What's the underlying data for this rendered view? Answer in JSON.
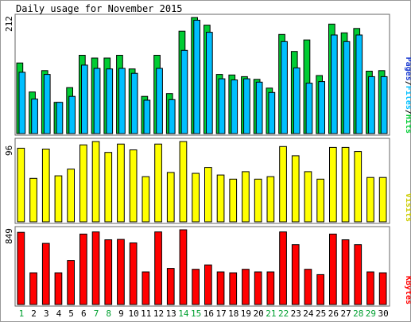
{
  "chart_data": {
    "type": "bar",
    "title": "Daily usage for November 2015",
    "categories": [
      "1",
      "2",
      "3",
      "4",
      "5",
      "6",
      "7",
      "8",
      "9",
      "10",
      "11",
      "12",
      "13",
      "14",
      "15",
      "16",
      "17",
      "18",
      "19",
      "20",
      "21",
      "22",
      "23",
      "24",
      "25",
      "26",
      "27",
      "28",
      "29",
      "30"
    ],
    "weekend_days": [
      "1",
      "7",
      "8",
      "14",
      "15",
      "21",
      "22",
      "28",
      "29"
    ],
    "panels": [
      {
        "id": "hits-files-pages",
        "ymax_label": "212",
        "ylim": [
          0,
          212
        ],
        "legend": [
          "Pages",
          "Files",
          "Hits"
        ],
        "series": [
          {
            "name": "Hits",
            "color": "#00cc33",
            "values": [
              129,
              76,
              115,
              57,
              84,
              143,
              138,
              138,
              143,
              118,
              68,
              143,
              73,
              187,
              212,
              198,
              108,
              107,
              104,
              99,
              83,
              181,
              150,
              171,
              106,
              200,
              184,
              192,
              114,
              115
            ]
          },
          {
            "name": "Files",
            "color": "#00bfff",
            "values": [
              112,
              63,
              108,
              57,
              68,
              125,
              119,
              118,
              119,
              110,
              61,
              119,
              62,
              152,
              207,
              185,
              100,
              98,
              100,
              94,
              75,
              168,
              120,
              92,
              95,
              180,
              168,
              180,
              104,
              104
            ]
          },
          {
            "name": "Pages",
            "color": "#1a3bd0",
            "values": [
              0,
              0,
              0,
              0,
              0,
              0,
              0,
              0,
              0,
              0,
              0,
              0,
              0,
              0,
              0,
              0,
              0,
              0,
              0,
              0,
              0,
              0,
              0,
              0,
              0,
              0,
              0,
              0,
              0,
              0
            ]
          }
        ]
      },
      {
        "id": "visits",
        "ymax_label": "96",
        "ylim": [
          0,
          96
        ],
        "legend": [
          "Visits"
        ],
        "series": [
          {
            "name": "Visits",
            "color": "#ffff00",
            "values": [
              88,
              52,
              87,
              55,
              63,
              92,
              96,
              83,
              93,
              86,
              54,
              93,
              59,
              96,
              58,
              65,
              56,
              51,
              60,
              51,
              54,
              90,
              79,
              60,
              51,
              89,
              89,
              84,
              53,
              53
            ]
          }
        ]
      },
      {
        "id": "kbytes",
        "ymax_label": "849",
        "ylim": [
          0,
          849
        ],
        "legend": [
          "KBytes"
        ],
        "series": [
          {
            "name": "KBytes",
            "color": "#ff0000",
            "values": [
              820,
              360,
              695,
              360,
              500,
              800,
              825,
              735,
              740,
              700,
              370,
              825,
              410,
              849,
              400,
              450,
              370,
              360,
              400,
              370,
              370,
              825,
              680,
              400,
              340,
              800,
              735,
              680,
              370,
              360
            ]
          }
        ]
      }
    ]
  }
}
